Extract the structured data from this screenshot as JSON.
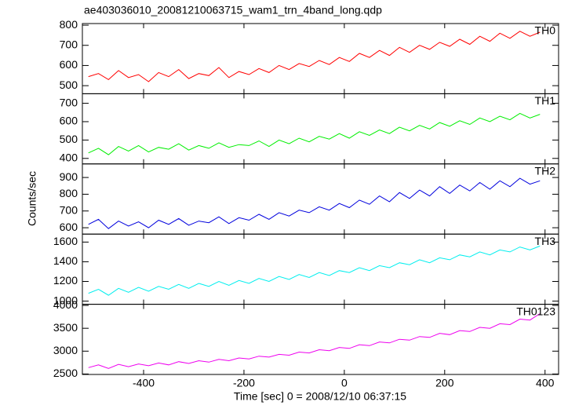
{
  "chart_data": {
    "type": "line",
    "title": "ae403036010_20081210063715_wam1_trn_4band_long.qdp",
    "x_label": "Time [sec] 0 = 2008/12/10 06:37:15",
    "y_label": "Counts/sec",
    "xlim": [
      -522,
      427
    ],
    "xticks": [
      -400,
      -200,
      0,
      200,
      400
    ],
    "x": [
      -510,
      -490,
      -470,
      -450,
      -430,
      -410,
      -390,
      -370,
      -350,
      -330,
      -310,
      -290,
      -270,
      -250,
      -230,
      -210,
      -190,
      -170,
      -150,
      -130,
      -110,
      -90,
      -70,
      -50,
      -30,
      -10,
      10,
      30,
      50,
      70,
      90,
      110,
      130,
      150,
      170,
      190,
      210,
      230,
      250,
      270,
      290,
      310,
      330,
      350,
      370,
      390
    ],
    "series": [
      {
        "name": "TH0",
        "color": "#ff0000",
        "ylim": [
          460,
          808
        ],
        "yticks": [
          500,
          600,
          700,
          800
        ],
        "values": [
          545,
          560,
          530,
          575,
          540,
          555,
          520,
          565,
          545,
          580,
          535,
          560,
          550,
          590,
          540,
          570,
          555,
          585,
          565,
          600,
          580,
          610,
          595,
          625,
          605,
          640,
          620,
          660,
          640,
          675,
          650,
          690,
          665,
          700,
          680,
          715,
          695,
          730,
          705,
          745,
          720,
          760,
          735,
          770,
          745,
          765
        ]
      },
      {
        "name": "TH1",
        "color": "#00ee00",
        "ylim": [
          370,
          752
        ],
        "yticks": [
          400,
          500,
          600,
          700
        ],
        "values": [
          430,
          455,
          420,
          465,
          440,
          470,
          435,
          460,
          450,
          480,
          445,
          470,
          455,
          485,
          460,
          475,
          470,
          495,
          465,
          500,
          480,
          510,
          490,
          520,
          505,
          535,
          510,
          545,
          525,
          555,
          535,
          570,
          550,
          580,
          560,
          595,
          575,
          605,
          585,
          620,
          600,
          630,
          610,
          645,
          620,
          640
        ]
      },
      {
        "name": "TH2",
        "color": "#0000dd",
        "ylim": [
          562,
          981
        ],
        "yticks": [
          600,
          700,
          800,
          900
        ],
        "values": [
          620,
          650,
          595,
          640,
          610,
          635,
          600,
          645,
          620,
          655,
          615,
          640,
          630,
          665,
          625,
          660,
          645,
          680,
          650,
          690,
          670,
          705,
          690,
          725,
          705,
          745,
          720,
          765,
          740,
          790,
          755,
          810,
          775,
          825,
          790,
          845,
          805,
          855,
          820,
          870,
          830,
          880,
          845,
          895,
          860,
          880
        ]
      },
      {
        "name": "TH3",
        "color": "#00eeee",
        "ylim": [
          968,
          1681
        ],
        "yticks": [
          1000,
          1200,
          1400,
          1600
        ],
        "values": [
          1080,
          1120,
          1060,
          1130,
          1090,
          1140,
          1100,
          1150,
          1120,
          1170,
          1130,
          1180,
          1150,
          1200,
          1160,
          1210,
          1180,
          1230,
          1200,
          1250,
          1220,
          1270,
          1240,
          1290,
          1260,
          1310,
          1290,
          1340,
          1310,
          1360,
          1340,
          1390,
          1370,
          1420,
          1390,
          1440,
          1420,
          1470,
          1450,
          1500,
          1470,
          1520,
          1500,
          1550,
          1520,
          1560
        ]
      },
      {
        "name": "TH0123",
        "color": "#ee00ee",
        "ylim": [
          2490,
          4025
        ],
        "yticks": [
          2500,
          3000,
          3500,
          4000
        ],
        "values": [
          2640,
          2700,
          2620,
          2710,
          2660,
          2720,
          2680,
          2740,
          2700,
          2770,
          2730,
          2790,
          2760,
          2820,
          2790,
          2850,
          2830,
          2890,
          2870,
          2930,
          2910,
          2980,
          2960,
          3030,
          3010,
          3080,
          3060,
          3140,
          3120,
          3200,
          3180,
          3260,
          3240,
          3320,
          3300,
          3390,
          3360,
          3450,
          3430,
          3520,
          3500,
          3600,
          3580,
          3700,
          3680,
          3820
        ]
      }
    ]
  }
}
